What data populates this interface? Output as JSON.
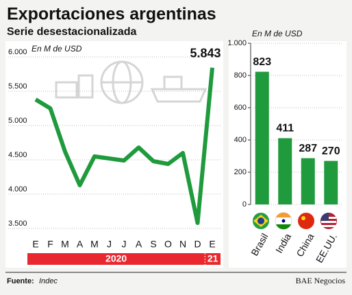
{
  "header": {
    "title": "Exportaciones argentinas",
    "subtitle": "Serie desestacionalizada"
  },
  "footer": {
    "source_label": "Fuente:",
    "source": "Indec",
    "credit": "BAE Negocios"
  },
  "chart_data": [
    {
      "type": "line",
      "axis_label": "En M de USD",
      "categories": [
        "E",
        "F",
        "M",
        "A",
        "M",
        "J",
        "J",
        "A",
        "S",
        "O",
        "N",
        "D",
        "E"
      ],
      "values": [
        5380,
        5250,
        4620,
        4130,
        4550,
        4520,
        4490,
        4680,
        4480,
        4440,
        4600,
        3580,
        5843
      ],
      "value_labels": [
        null,
        null,
        null,
        null,
        null,
        null,
        null,
        null,
        null,
        null,
        null,
        null,
        "5.843"
      ],
      "color": "#1f9a3d",
      "periods": [
        {
          "label": "2020"
        },
        {
          "label": "21"
        }
      ],
      "ylim": [
        3500,
        6000
      ],
      "yticks": [
        {
          "value": 3500,
          "label": "3.500"
        },
        {
          "value": 4000,
          "label": "4.000"
        },
        {
          "value": 4500,
          "label": "4.500"
        },
        {
          "value": 5000,
          "label": "5.000"
        },
        {
          "value": 5500,
          "label": "5.500"
        },
        {
          "value": 6000,
          "label": "6.000"
        }
      ],
      "grid": true
    },
    {
      "type": "bar",
      "axis_label": "En M de USD",
      "categories": [
        "Brasil",
        "India",
        "China",
        "EE.UU."
      ],
      "values": [
        823,
        411,
        287,
        270
      ],
      "color": "#1f9a3d",
      "ylim": [
        0,
        1000
      ],
      "yticks": [
        0,
        200,
        400,
        600,
        800,
        {
          "value": 1000,
          "label": "1.000"
        }
      ],
      "grid": true
    }
  ]
}
